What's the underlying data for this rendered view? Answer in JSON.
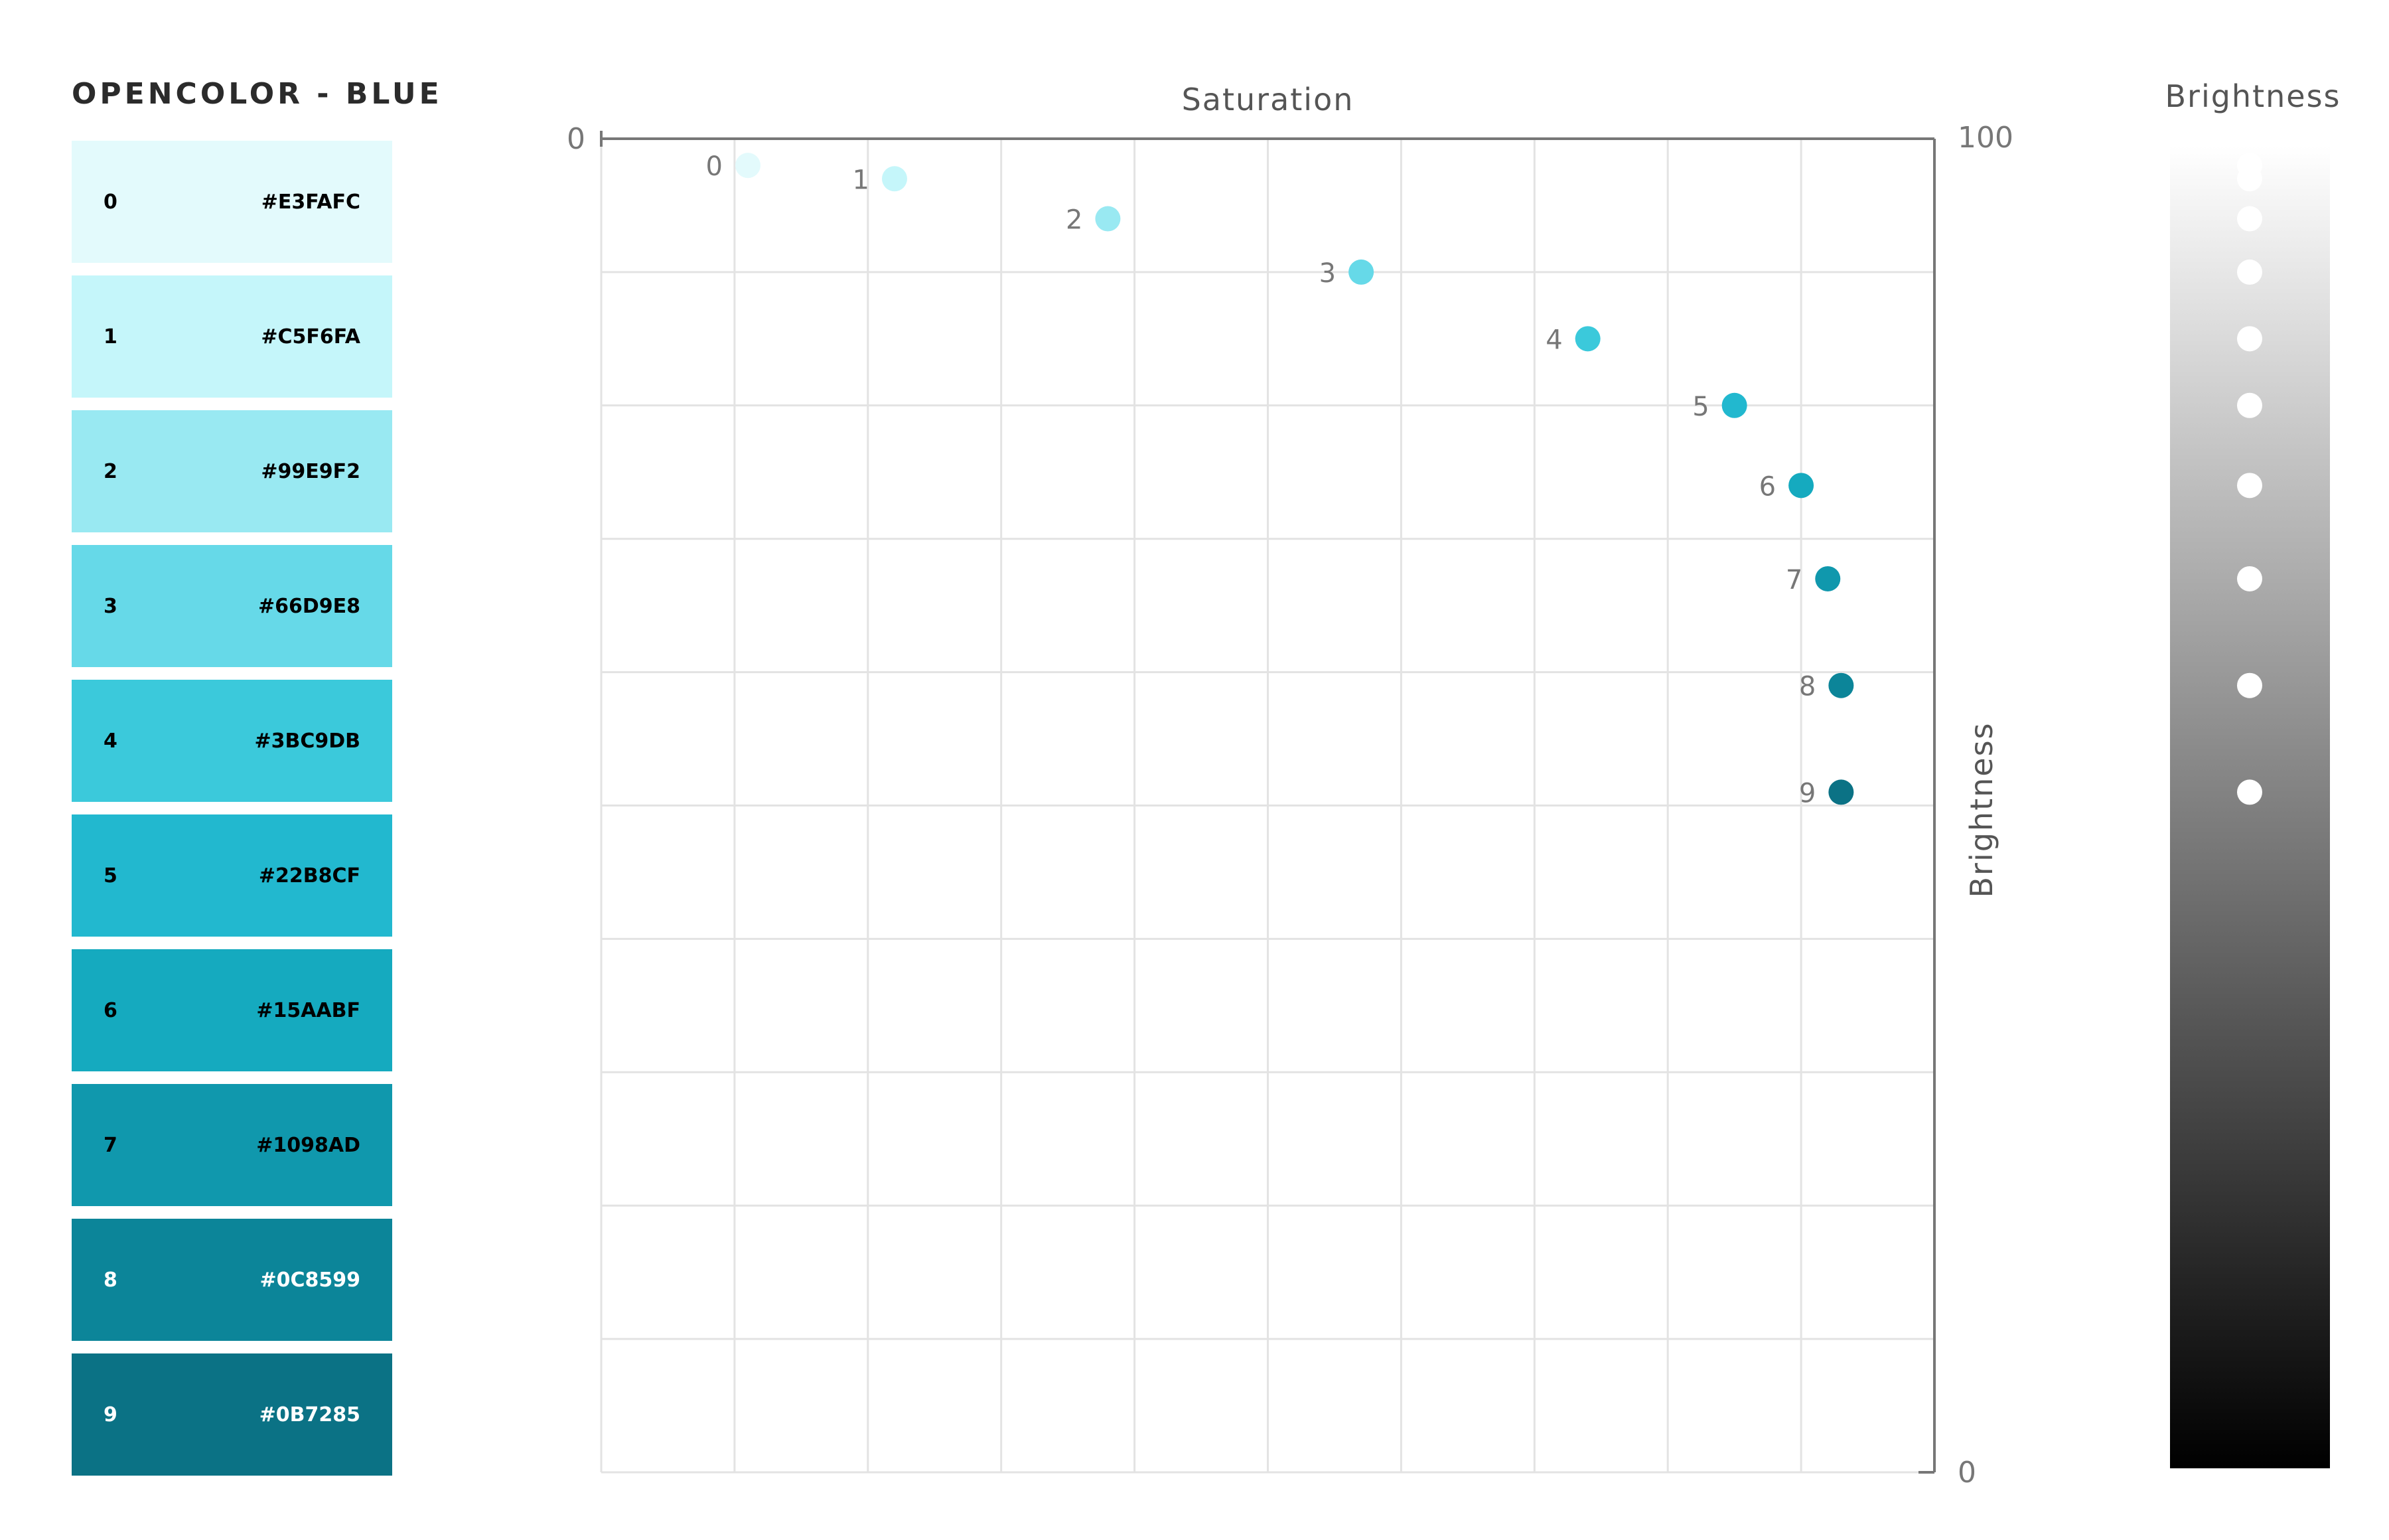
{
  "title": "OPENCOLOR - BLUE",
  "swatches": [
    {
      "index": "0",
      "hex": "#E3FAFC"
    },
    {
      "index": "1",
      "hex": "#C5F6FA"
    },
    {
      "index": "2",
      "hex": "#99E9F2"
    },
    {
      "index": "3",
      "hex": "#66D9E8"
    },
    {
      "index": "4",
      "hex": "#3BC9DB"
    },
    {
      "index": "5",
      "hex": "#22B8CF"
    },
    {
      "index": "6",
      "hex": "#15AABF"
    },
    {
      "index": "7",
      "hex": "#1098AD"
    },
    {
      "index": "8",
      "hex": "#0C8599"
    },
    {
      "index": "9",
      "hex": "#0B7285"
    }
  ],
  "colors": {
    "swatch_text_light": "#000000",
    "swatch_text_dark": "#ffffff",
    "grid": "#e3e3e3",
    "axis": "#777777",
    "label": "#777777",
    "brightness_dot": "#ffffff"
  },
  "chart_data": {
    "type": "scatter",
    "xlabel": "Saturation",
    "ylabel": "Brightness",
    "xlim": [
      0,
      100
    ],
    "ylim": [
      0,
      100
    ],
    "x_tick_labels": [
      "0"
    ],
    "y_tick_labels": [
      "100",
      "0"
    ],
    "grid": true,
    "points": [
      {
        "label": "0",
        "saturation": 11,
        "brightness": 98,
        "color": "#E3FAFC"
      },
      {
        "label": "1",
        "saturation": 22,
        "brightness": 97,
        "color": "#C5F6FA"
      },
      {
        "label": "2",
        "saturation": 38,
        "brightness": 94,
        "color": "#99E9F2"
      },
      {
        "label": "3",
        "saturation": 57,
        "brightness": 90,
        "color": "#66D9E8"
      },
      {
        "label": "4",
        "saturation": 74,
        "brightness": 85,
        "color": "#3BC9DB"
      },
      {
        "label": "5",
        "saturation": 85,
        "brightness": 80,
        "color": "#22B8CF"
      },
      {
        "label": "6",
        "saturation": 90,
        "brightness": 74,
        "color": "#15AABF"
      },
      {
        "label": "7",
        "saturation": 92,
        "brightness": 67,
        "color": "#1098AD"
      },
      {
        "label": "8",
        "saturation": 93,
        "brightness": 59,
        "color": "#0C8599"
      },
      {
        "label": "9",
        "saturation": 93,
        "brightness": 51,
        "color": "#0B7285"
      }
    ]
  },
  "brightness_scale": {
    "title": "Brightness",
    "gradient_top": "#ffffff",
    "gradient_bottom": "#000000"
  }
}
